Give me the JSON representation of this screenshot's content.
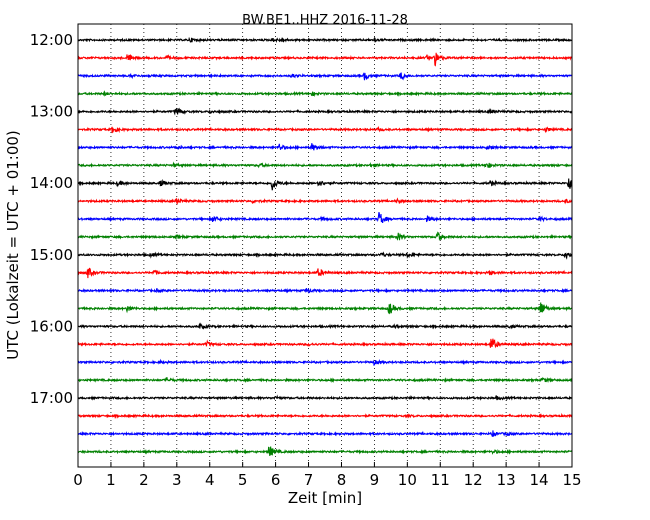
{
  "chart_data": {
    "type": "line",
    "title": "BW.BE1..HHZ 2016-11-28",
    "xlabel": "Zeit  [min]",
    "ylabel": "UTC (Lokalzeit = UTC + 01:00)",
    "xlim": [
      0,
      15
    ],
    "x_ticks": [
      "0",
      "1",
      "2",
      "3",
      "4",
      "5",
      "6",
      "7",
      "8",
      "9",
      "10",
      "11",
      "12",
      "13",
      "14",
      "15"
    ],
    "y_ticks": [
      "12:00",
      "13:00",
      "14:00",
      "15:00",
      "16:00",
      "17:00"
    ],
    "grid": "vertical dotted at each minute",
    "trace_colors": [
      "#000000",
      "#ff0000",
      "#0000ff",
      "#008000"
    ],
    "row_start_times": [
      "12:00",
      "12:15",
      "12:30",
      "12:45",
      "13:00",
      "13:15",
      "13:30",
      "13:45",
      "14:00",
      "14:15",
      "14:30",
      "14:45",
      "15:00",
      "15:15",
      "15:30",
      "15:45",
      "16:00",
      "16:15",
      "16:30",
      "16:45",
      "17:00",
      "17:15",
      "17:30",
      "17:45"
    ],
    "trace_rows": [
      {
        "row": 0,
        "events": [
          [
            3.4,
            0.25
          ],
          [
            5.9,
            0.2
          ],
          [
            6.2,
            0.2
          ],
          [
            9.0,
            0.15
          ]
        ]
      },
      {
        "row": 1,
        "events": [
          [
            1.5,
            0.45
          ],
          [
            10.85,
            0.85
          ],
          [
            10.6,
            0.3
          ],
          [
            2.7,
            0.2
          ]
        ]
      },
      {
        "row": 2,
        "events": [
          [
            8.7,
            0.45
          ],
          [
            9.8,
            0.4
          ],
          [
            1.6,
            0.15
          ],
          [
            6.5,
            0.2
          ]
        ]
      },
      {
        "row": 3,
        "events": [
          [
            7.1,
            0.2
          ],
          [
            0.8,
            0.15
          ]
        ]
      },
      {
        "row": 4,
        "events": [
          [
            2.95,
            0.25
          ],
          [
            3.05,
            0.25
          ],
          [
            12.5,
            0.3
          ],
          [
            4.0,
            0.15
          ]
        ]
      },
      {
        "row": 5,
        "events": [
          [
            1.05,
            0.45
          ],
          [
            14.2,
            0.25
          ],
          [
            9.1,
            0.15
          ]
        ]
      },
      {
        "row": 6,
        "events": [
          [
            6.1,
            0.45
          ],
          [
            7.1,
            0.45
          ],
          [
            3.0,
            0.15
          ],
          [
            12.4,
            0.2
          ]
        ]
      },
      {
        "row": 7,
        "events": [
          [
            12.4,
            0.4
          ],
          [
            5.5,
            0.2
          ],
          [
            8.9,
            0.2
          ],
          [
            2.9,
            0.15
          ]
        ]
      },
      {
        "row": 8,
        "events": [
          [
            5.9,
            0.85
          ],
          [
            7.3,
            0.4
          ],
          [
            1.2,
            0.3
          ],
          [
            2.5,
            0.35
          ],
          [
            14.9,
            0.9
          ],
          [
            12.5,
            0.3
          ]
        ]
      },
      {
        "row": 9,
        "events": [
          [
            3.0,
            0.25
          ],
          [
            5.3,
            0.2
          ],
          [
            9.7,
            0.2
          ],
          [
            14.8,
            0.2
          ]
        ]
      },
      {
        "row": 10,
        "events": [
          [
            9.15,
            0.9
          ],
          [
            4.1,
            0.35
          ],
          [
            10.6,
            0.35
          ],
          [
            14.0,
            0.25
          ],
          [
            7.4,
            0.2
          ]
        ]
      },
      {
        "row": 11,
        "events": [
          [
            9.7,
            0.55
          ],
          [
            10.9,
            0.6
          ],
          [
            3.0,
            0.2
          ]
        ]
      },
      {
        "row": 12,
        "events": [
          [
            14.8,
            0.55
          ],
          [
            9.2,
            0.25
          ],
          [
            10.0,
            0.25
          ],
          [
            2.2,
            0.2
          ]
        ]
      },
      {
        "row": 13,
        "events": [
          [
            0.3,
            0.6
          ],
          [
            7.3,
            0.5
          ],
          [
            2.3,
            0.3
          ],
          [
            12.5,
            0.2
          ]
        ]
      },
      {
        "row": 14,
        "events": [
          [
            6.95,
            0.3
          ],
          [
            2.4,
            0.15
          ]
        ]
      },
      {
        "row": 15,
        "events": [
          [
            9.45,
            0.75
          ],
          [
            14.05,
            0.9
          ],
          [
            1.5,
            0.35
          ]
        ]
      },
      {
        "row": 16,
        "events": [
          [
            3.7,
            0.3
          ],
          [
            9.6,
            0.15
          ],
          [
            13.1,
            0.15
          ]
        ]
      },
      {
        "row": 17,
        "events": [
          [
            12.55,
            0.9
          ],
          [
            3.9,
            0.3
          ],
          [
            7.0,
            0.15
          ]
        ]
      },
      {
        "row": 18,
        "events": [
          [
            9.0,
            0.3
          ],
          [
            2.5,
            0.15
          ]
        ]
      },
      {
        "row": 19,
        "events": [
          [
            2.7,
            0.25
          ],
          [
            14.1,
            0.25
          ]
        ]
      },
      {
        "row": 20,
        "events": [
          [
            12.7,
            0.2
          ],
          [
            6.0,
            0.15
          ]
        ]
      },
      {
        "row": 21,
        "events": [
          [
            10.0,
            0.1
          ]
        ]
      },
      {
        "row": 22,
        "events": [
          [
            12.6,
            0.3
          ],
          [
            13.0,
            0.2
          ]
        ]
      },
      {
        "row": 23,
        "events": [
          [
            5.8,
            0.8
          ],
          [
            12.6,
            0.2
          ]
        ]
      }
    ]
  }
}
